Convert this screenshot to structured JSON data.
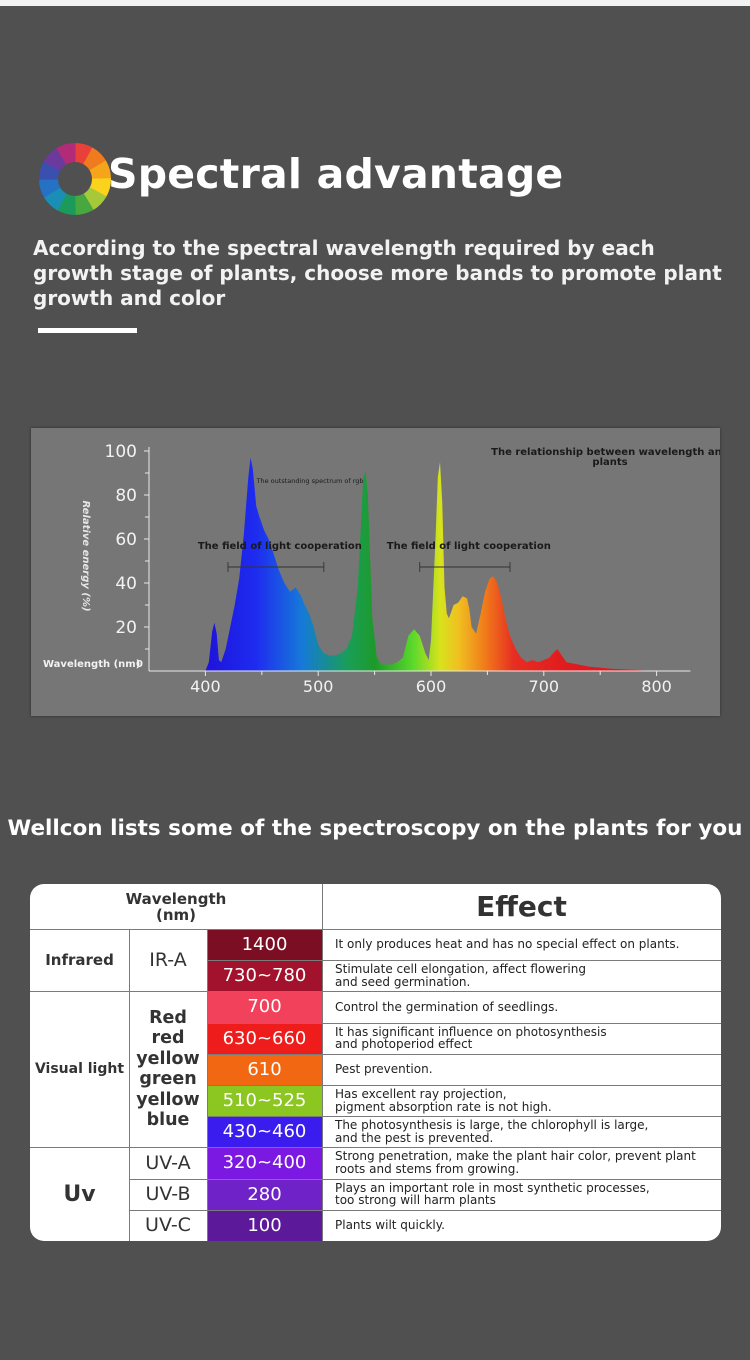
{
  "header": {
    "title": "Spectral advantage",
    "subtitle": "According to the spectral wavelength required by each growth stage of plants, choose more bands to promote plant growth and color",
    "wheel_colors": [
      "#e8413a",
      "#f07a1e",
      "#f6a51b",
      "#fbd21c",
      "#a6c93a",
      "#46a83f",
      "#1b9a5b",
      "#1a8fb6",
      "#2571c4",
      "#3a4fae",
      "#6b3a9c",
      "#b12b79"
    ]
  },
  "chart_data": {
    "type": "area",
    "title": "The relationship between wavelength and plants",
    "xlabel": "Wavelength (nm)",
    "ylabel": "Relative energy (%)",
    "xlim": [
      350,
      830
    ],
    "ylim": [
      0,
      100
    ],
    "xticks": [
      400,
      500,
      600,
      700,
      800
    ],
    "yticks": [
      0,
      20,
      40,
      60,
      80,
      100
    ],
    "series": [
      {
        "x": [
          400,
          403,
          406,
          408,
          410,
          412,
          414,
          418,
          422,
          426,
          430,
          434,
          438,
          440,
          442,
          445,
          448,
          452,
          456,
          460,
          465,
          470,
          475,
          480,
          485,
          488,
          492,
          496,
          500,
          505,
          510,
          515,
          520,
          525,
          530,
          535,
          538,
          540,
          542,
          544,
          546,
          548,
          552,
          556,
          560,
          565,
          570,
          575,
          580,
          585,
          590,
          595,
          598,
          600,
          604,
          606,
          608,
          610,
          612,
          614,
          616,
          618,
          620,
          624,
          628,
          632,
          634,
          636,
          640,
          644,
          648,
          652,
          655,
          658,
          662,
          666,
          670,
          675,
          680,
          685,
          690,
          695,
          700,
          705,
          708,
          712,
          716,
          720,
          730,
          740,
          760,
          780,
          800
        ],
        "y": [
          0,
          4,
          18,
          22,
          17,
          5,
          4,
          10,
          20,
          30,
          42,
          62,
          88,
          97,
          92,
          75,
          70,
          64,
          60,
          54,
          46,
          40,
          36,
          38,
          34,
          30,
          26,
          20,
          12,
          8,
          7,
          7,
          8,
          10,
          16,
          38,
          68,
          88,
          91,
          80,
          52,
          24,
          6,
          3,
          3,
          3,
          4,
          6,
          16,
          19,
          16,
          8,
          5,
          14,
          60,
          88,
          95,
          76,
          38,
          26,
          24,
          27,
          30,
          31,
          34,
          33,
          28,
          20,
          17,
          26,
          36,
          42,
          43,
          41,
          34,
          24,
          16,
          10,
          6,
          4,
          5,
          4,
          5,
          6,
          8,
          10,
          7,
          4,
          3,
          2,
          1,
          0.5,
          0
        ]
      }
    ],
    "annotations": [
      {
        "text": "The outstanding spectrum of rgb",
        "x": 440,
        "y": 86
      },
      {
        "text": "The field of light cooperation",
        "x": 420,
        "y": 55,
        "range": [
          420,
          505
        ]
      },
      {
        "text": "The field of light cooperation",
        "x": 590,
        "y": 55,
        "range": [
          590,
          670
        ]
      }
    ],
    "grid": false
  },
  "section_title": "Wellcon lists some of the spectroscopy on the plants for you",
  "table": {
    "header_wavelength": "Wavelength\n(nm)",
    "header_effect": "Effect",
    "groups": [
      {
        "category": "Infrared",
        "sub": "IR-A"
      },
      {
        "category": "Visual light",
        "colors": [
          "Red",
          "red",
          "yellow",
          "green",
          "yellow",
          "blue"
        ]
      },
      {
        "category": "Uv",
        "subs": [
          "UV-A",
          "UV-B",
          "UV-C"
        ]
      }
    ],
    "rows": [
      {
        "wavelength": "1400",
        "color": "#7b0e22",
        "effect": "It only produces heat and has no special effect on plants."
      },
      {
        "wavelength": "730~780",
        "color": "#a3122c",
        "effect": "Stimulate cell elongation, affect flowering\nand seed germination."
      },
      {
        "wavelength": "700",
        "color": "#f2415b",
        "effect": "Control the germination of seedlings."
      },
      {
        "wavelength": "630~660",
        "color": "#ef1c1c",
        "effect": "It has significant influence on photosynthesis\nand photoperiod effect"
      },
      {
        "wavelength": "610",
        "color": "#f26711",
        "effect": "Pest prevention."
      },
      {
        "wavelength": "510~525",
        "color": "#8cc621",
        "effect": "Has excellent ray projection,\npigment absorption rate is not high."
      },
      {
        "wavelength": "430~460",
        "color": "#3a1cee",
        "effect": "The photosynthesis is large, the chlorophyll is large,\nand the pest is prevented."
      },
      {
        "wavelength": "320~400",
        "color": "#7b18e2",
        "effect": "Strong penetration, make the plant hair color, prevent plant\nroots and stems from growing."
      },
      {
        "wavelength": "280",
        "color": "#6e22c8",
        "effect": "Plays an important role in most synthetic processes,\ntoo strong will harm plants"
      },
      {
        "wavelength": "100",
        "color": "#5c1a9b",
        "effect": "Plants wilt quickly."
      }
    ]
  }
}
